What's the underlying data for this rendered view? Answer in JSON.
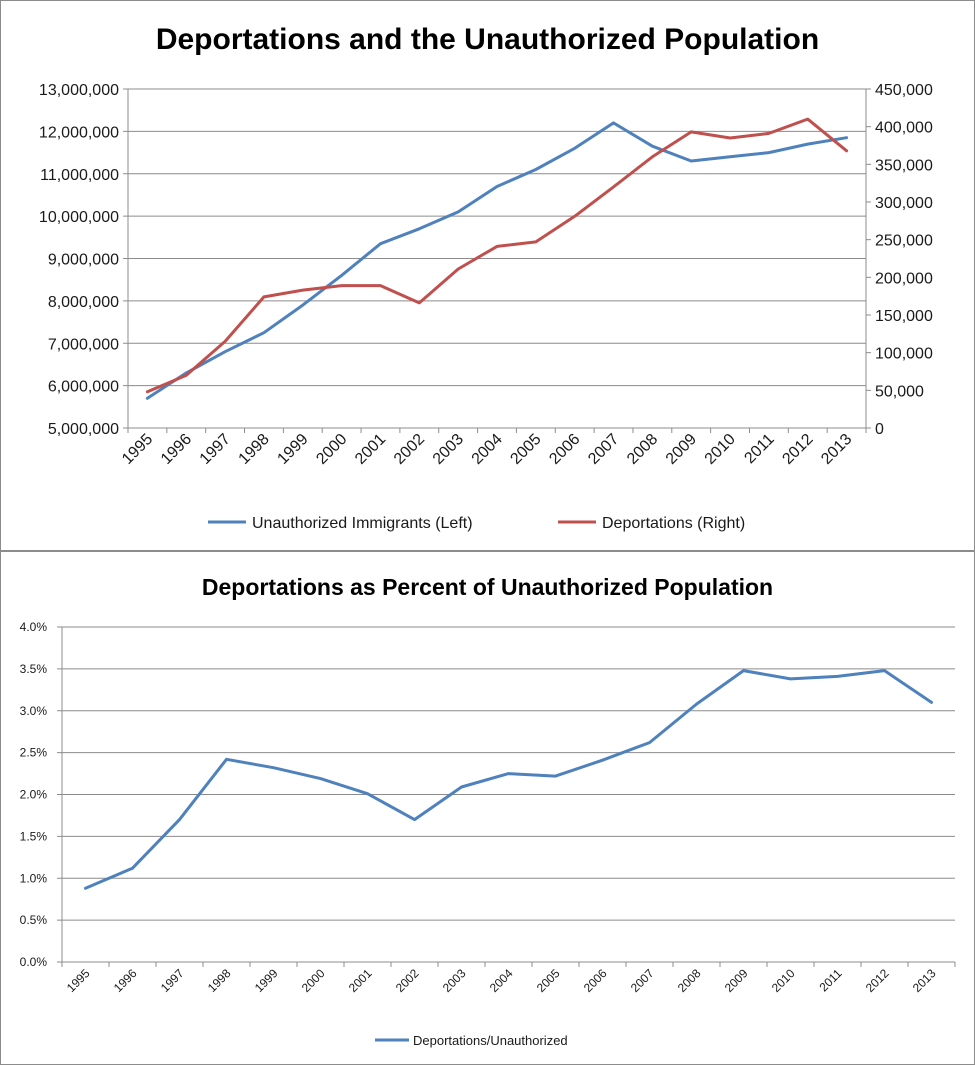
{
  "chart_data": [
    {
      "type": "line",
      "title": "Deportations and the Unauthorized Population",
      "categories": [
        "1995",
        "1996",
        "1997",
        "1998",
        "1999",
        "2000",
        "2001",
        "2002",
        "2003",
        "2004",
        "2005",
        "2006",
        "2007",
        "2008",
        "2009",
        "2010",
        "2011",
        "2012",
        "2013"
      ],
      "series": [
        {
          "name": "Unauthorized Immigrants (Left)",
          "axis": "left",
          "color": "#4f81bd",
          "values": [
            5700000,
            6300000,
            6800000,
            7250000,
            7900000,
            8600000,
            9350000,
            9700000,
            10100000,
            10700000,
            11100000,
            11600000,
            12200000,
            11650000,
            11300000,
            11400000,
            11500000,
            11700000,
            11850000
          ]
        },
        {
          "name": "Deportations (Right)",
          "axis": "right",
          "color": "#c0504d",
          "values": [
            48000,
            70000,
            115000,
            174000,
            183000,
            189000,
            189000,
            166000,
            211000,
            241000,
            247000,
            281000,
            320000,
            360000,
            393000,
            385000,
            391000,
            410000,
            368000
          ]
        }
      ],
      "yleft": {
        "lim": [
          5000000,
          13000000
        ],
        "ticks": [
          5000000,
          6000000,
          7000000,
          8000000,
          9000000,
          10000000,
          11000000,
          12000000,
          13000000
        ],
        "labels": [
          "5,000,000",
          "6,000,000",
          "7,000,000",
          "8,000,000",
          "9,000,000",
          "10,000,000",
          "11,000,000",
          "12,000,000",
          "13,000,000"
        ]
      },
      "yright": {
        "lim": [
          0,
          450000
        ],
        "ticks": [
          0,
          50000,
          100000,
          150000,
          200000,
          250000,
          300000,
          350000,
          400000,
          450000
        ],
        "labels": [
          "0",
          "50,000",
          "100,000",
          "150,000",
          "200,000",
          "250,000",
          "300,000",
          "350,000",
          "400,000",
          "450,000"
        ]
      },
      "grid": true,
      "legend": "bottom"
    },
    {
      "type": "line",
      "title": "Deportations as Percent of Unauthorized Population",
      "categories": [
        "1995",
        "1996",
        "1997",
        "1998",
        "1999",
        "2000",
        "2001",
        "2002",
        "2003",
        "2004",
        "2005",
        "2006",
        "2007",
        "2008",
        "2009",
        "2010",
        "2011",
        "2012",
        "2013"
      ],
      "series": [
        {
          "name": "Deportations/Unauthorized",
          "color": "#4f81bd",
          "values": [
            0.88,
            1.12,
            1.7,
            2.42,
            2.32,
            2.19,
            2.01,
            1.7,
            2.09,
            2.25,
            2.22,
            2.41,
            2.62,
            3.08,
            3.48,
            3.38,
            3.41,
            3.48,
            3.1
          ]
        }
      ],
      "ylim": [
        0,
        4
      ],
      "yticks": [
        0,
        0.5,
        1,
        1.5,
        2,
        2.5,
        3,
        3.5,
        4
      ],
      "ylabels": [
        "0.0%",
        "0.5%",
        "1.0%",
        "1.5%",
        "2.0%",
        "2.5%",
        "3.0%",
        "3.5%",
        "4.0%"
      ],
      "grid": true,
      "legend": "bottom"
    }
  ]
}
